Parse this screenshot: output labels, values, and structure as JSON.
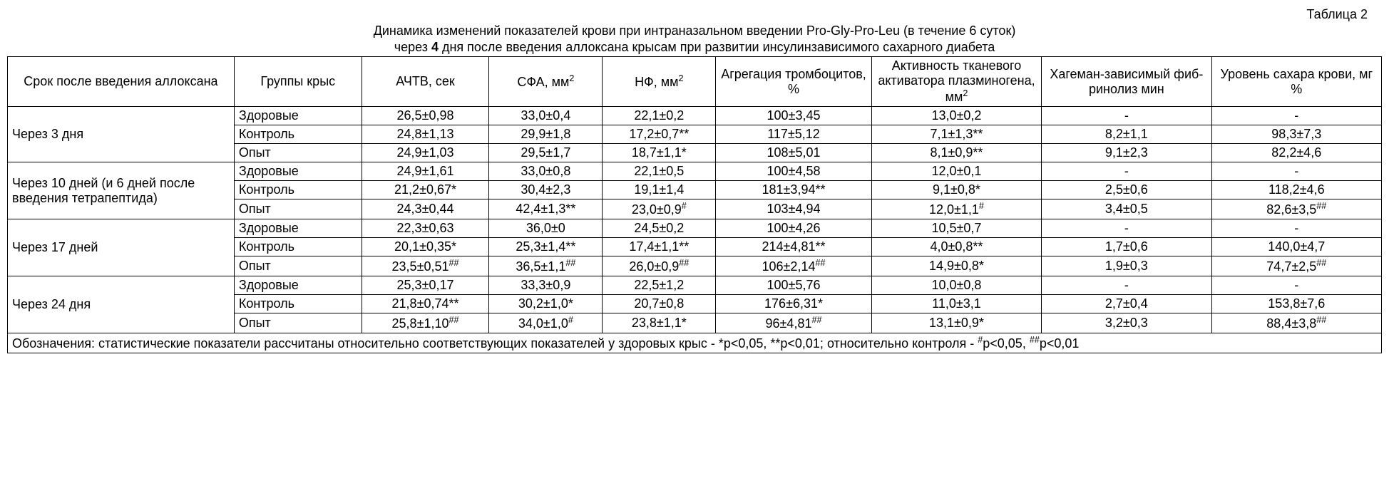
{
  "tableLabel": "Таблица 2",
  "titleLine1": "Динамика изменений показателей крови при интраназальном введении Pro-Gly-Pro-Leu (в течение 6 суток)",
  "titleLine2_a": "через ",
  "titleLine2_b": "4",
  "titleLine2_c": " дня после введения аллоксана крысам при развитии инсулинзависимого сахарного диабета",
  "headers": {
    "h1": "Срок после введения аллоксана",
    "h2": "Группы крыс",
    "h3": "АЧТВ, сек",
    "h4_a": "СФА, мм",
    "h4_sup": "2",
    "h5_a": "НФ, мм",
    "h5_sup": "2",
    "h6": "Агрегация тром­боцитов, %",
    "h7_a": "Активность тканевого актива­тора плазминоге­на, мм",
    "h7_sup": "2",
    "h8": "Хагеман-зависимый фиб­ринолиз мин",
    "h9": "Уровень сахара крови, мг %"
  },
  "periods": {
    "p1": "Через 3 дня",
    "p2": "Через 10 дней (и 6 дней после введения тетра­пептида)",
    "p3": "Через 17 дней",
    "p4": "Через 24 дня"
  },
  "groups": {
    "g1": "Здоровые",
    "g2": "Контроль",
    "g3": "Опыт"
  },
  "r": {
    "p1g1": {
      "c3": "26,5±0,98",
      "c4": "33,0±0,4",
      "c5": "22,1±0,2",
      "c6": "100±3,45",
      "c7": "13,0±0,2",
      "c8": "-",
      "c9": "-"
    },
    "p1g2": {
      "c3": "24,8±1,13",
      "c4": "29,9±1,8",
      "c5": "17,2±0,7**",
      "c6": "117±5,12",
      "c7": "7,1±1,3**",
      "c8": "8,2±1,1",
      "c9": "98,3±7,3"
    },
    "p1g3": {
      "c3": "24,9±1,03",
      "c4": "29,5±1,7",
      "c5": "18,7±1,1*",
      "c6": "108±5,01",
      "c7": "8,1±0,9**",
      "c8": "9,1±2,3",
      "c9": "82,2±4,6"
    },
    "p2g1": {
      "c3": "24,9±1,61",
      "c4": "33,0±0,8",
      "c5": "22,1±0,5",
      "c6": "100±4,58",
      "c7": "12,0±0,1",
      "c8": "-",
      "c9": "-"
    },
    "p2g2": {
      "c3": "21,2±0,67*",
      "c4": "30,4±2,3",
      "c5": "19,1±1,4",
      "c6": "181±3,94**",
      "c7": "9,1±0,8*",
      "c8": "2,5±0,6",
      "c9": "118,2±4,6"
    },
    "p2g3": {
      "c3": "24,3±0,44",
      "c4": "42,4±1,3**",
      "c5a": "23,0±0,9",
      "c5s": "#",
      "c6": "103±4,94",
      "c7a": "12,0±1,1",
      "c7s": "#",
      "c8": "3,4±0,5",
      "c9a": "82,6±3,5",
      "c9s": "##"
    },
    "p3g1": {
      "c3": "22,3±0,63",
      "c4": "36,0±0",
      "c5": "24,5±0,2",
      "c6": "100±4,26",
      "c7": "10,5±0,7",
      "c8": "-",
      "c9": "-"
    },
    "p3g2": {
      "c3": "20,1±0,35*",
      "c4": "25,3±1,4**",
      "c5": "17,4±1,1**",
      "c6": "214±4,81**",
      "c7": "4,0±0,8**",
      "c8": "1,7±0,6",
      "c9": "140,0±4,7"
    },
    "p3g3": {
      "c3a": "23,5±0,51",
      "c3s": "##",
      "c4a": "36,5±1,1",
      "c4s": "##",
      "c5a": "26,0±0,9",
      "c5s": "##",
      "c6a": "106±2,14",
      "c6s": "##",
      "c7": "14,9±0,8*",
      "c8": "1,9±0,3",
      "c9a": "74,7±2,5",
      "c9s": "##"
    },
    "p4g1": {
      "c3": "25,3±0,17",
      "c4": "33,3±0,9",
      "c5": "22,5±1,2",
      "c6": "100±5,76",
      "c7": "10,0±0,8",
      "c8": "-",
      "c9": "-"
    },
    "p4g2": {
      "c3": "21,8±0,74**",
      "c4": "30,2±1,0*",
      "c5": "20,7±0,8",
      "c6": "176±6,31*",
      "c7": "11,0±3,1",
      "c8": "2,7±0,4",
      "c9": "153,8±7,6"
    },
    "p4g3": {
      "c3a": "25,8±1,10",
      "c3s": "##",
      "c4a": "34,0±1,0",
      "c4s": "#",
      "c5": "23,8±1,1*",
      "c6a": "96±4,81",
      "c6s": "##",
      "c7": "13,1±0,9*",
      "c8": "3,2±0,3",
      "c9a": "88,4±3,8",
      "c9s": "##"
    }
  },
  "footnote_a": "Обозначения: статистические показатели рассчитаны относительно соответствующих показателей у здоровых крыс - *р<0,05, **р<0,01; относительно контроля - ",
  "footnote_s1": "#",
  "footnote_b": "р<0,05, ",
  "footnote_s2": "##",
  "footnote_c": "р<0,01"
}
